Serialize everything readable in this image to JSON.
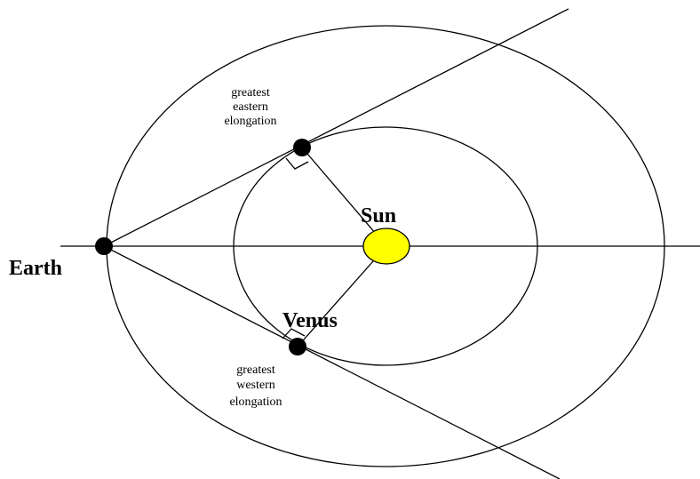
{
  "labels": {
    "sun": "Sun",
    "earth": "Earth",
    "venus": "Venus",
    "eastern": [
      "greatest",
      "eastern",
      "elongation"
    ],
    "western": [
      "greatest",
      "western",
      "elongation"
    ]
  }
}
